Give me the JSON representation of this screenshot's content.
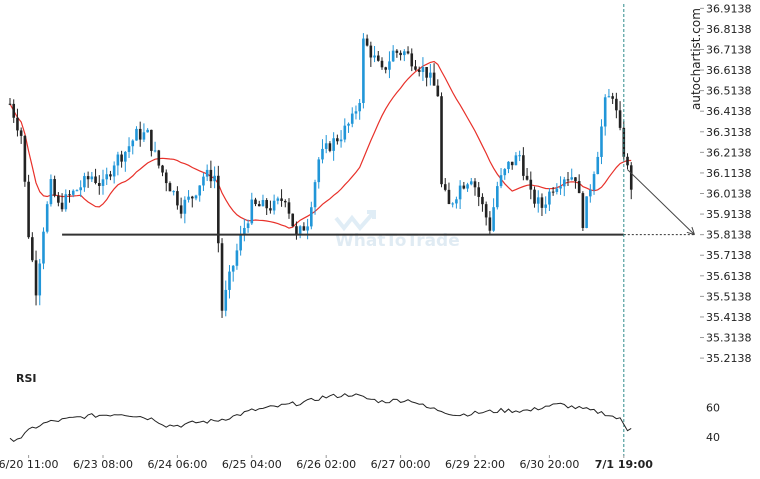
{
  "watermark": {
    "line1": "autochartist.com",
    "line2": "WhatToTrade"
  },
  "colors": {
    "bull": "#2196d8",
    "bear": "#222222",
    "ma": "#e8312a",
    "level": "#333333",
    "rsi": "#222222",
    "vline": "#2e8b8b",
    "projection": "#444444",
    "grid_text": "#222222"
  },
  "chart_data": {
    "type": "candlestick",
    "title": "",
    "price_axis": {
      "ticks": [
        "36.9138",
        "36.8138",
        "36.7138",
        "36.6138",
        "36.5138",
        "36.4138",
        "36.3138",
        "36.2138",
        "36.1138",
        "36.0138",
        "35.9138",
        "35.8138",
        "35.7138",
        "35.6138",
        "35.5138",
        "35.4138",
        "35.3138",
        "35.2138"
      ],
      "ylim": [
        35.19,
        36.93
      ]
    },
    "time_axis": {
      "labels": [
        "6/20 11:00",
        "6/23 08:00",
        "6/24 06:00",
        "6/25 04:00",
        "6/26 02:00",
        "6/27 00:00",
        "6/29 22:00",
        "6/30 20:00",
        "7/1 19:00"
      ],
      "label_bars": [
        5,
        25,
        45,
        65,
        85,
        105,
        125,
        145,
        165
      ]
    },
    "support_level": {
      "value": 35.8138,
      "start_bar": 14,
      "end_bar": 184
    },
    "forecast_projection": {
      "from": {
        "bar": 166,
        "value": 36.13
      },
      "to": {
        "bar": 184,
        "value": 35.8138
      }
    },
    "current_time_bar": 165,
    "rsi": {
      "label": "RSI",
      "ticks": [
        "60",
        "40"
      ],
      "ylim": [
        30,
        80
      ]
    },
    "anchors": [
      [
        0,
        36.45
      ],
      [
        3,
        36.3
      ],
      [
        5,
        35.82
      ],
      [
        7,
        35.55
      ],
      [
        9,
        35.85
      ],
      [
        11,
        36.05
      ],
      [
        13,
        35.95
      ],
      [
        16,
        36.0
      ],
      [
        19,
        36.05
      ],
      [
        22,
        36.1
      ],
      [
        25,
        36.05
      ],
      [
        28,
        36.17
      ],
      [
        31,
        36.22
      ],
      [
        34,
        36.3
      ],
      [
        37,
        36.3
      ],
      [
        40,
        36.15
      ],
      [
        43,
        36.05
      ],
      [
        46,
        35.95
      ],
      [
        49,
        36.0
      ],
      [
        52,
        36.1
      ],
      [
        55,
        36.1
      ],
      [
        57,
        35.45
      ],
      [
        59,
        35.6
      ],
      [
        62,
        35.8
      ],
      [
        65,
        35.95
      ],
      [
        68,
        35.95
      ],
      [
        71,
        35.95
      ],
      [
        74,
        36.0
      ],
      [
        77,
        35.8
      ],
      [
        80,
        35.88
      ],
      [
        83,
        36.18
      ],
      [
        86,
        36.25
      ],
      [
        89,
        36.3
      ],
      [
        92,
        36.37
      ],
      [
        94,
        36.48
      ],
      [
        95,
        36.75
      ],
      [
        97,
        36.7
      ],
      [
        100,
        36.6
      ],
      [
        103,
        36.7
      ],
      [
        106,
        36.7
      ],
      [
        109,
        36.65
      ],
      [
        112,
        36.6
      ],
      [
        115,
        36.5
      ],
      [
        116,
        36.05
      ],
      [
        118,
        35.95
      ],
      [
        121,
        36.05
      ],
      [
        124,
        36.1
      ],
      [
        127,
        35.95
      ],
      [
        129,
        35.85
      ],
      [
        131,
        36.05
      ],
      [
        134,
        36.15
      ],
      [
        137,
        36.2
      ],
      [
        140,
        36.0
      ],
      [
        143,
        35.95
      ],
      [
        146,
        36.05
      ],
      [
        149,
        36.1
      ],
      [
        152,
        36.1
      ],
      [
        154,
        35.88
      ],
      [
        156,
        36.05
      ],
      [
        158,
        36.22
      ],
      [
        160,
        36.45
      ],
      [
        162,
        36.5
      ],
      [
        164,
        36.3
      ],
      [
        166,
        36.13
      ],
      [
        167,
        36.05
      ]
    ],
    "rsi_anchors": [
      [
        0,
        38
      ],
      [
        3,
        40
      ],
      [
        6,
        46
      ],
      [
        10,
        50
      ],
      [
        15,
        52
      ],
      [
        20,
        54
      ],
      [
        25,
        55
      ],
      [
        30,
        56
      ],
      [
        35,
        54
      ],
      [
        39,
        52
      ],
      [
        42,
        48
      ],
      [
        46,
        48
      ],
      [
        50,
        50
      ],
      [
        55,
        51
      ],
      [
        60,
        54
      ],
      [
        65,
        58
      ],
      [
        70,
        60
      ],
      [
        75,
        62
      ],
      [
        80,
        64
      ],
      [
        84,
        67
      ],
      [
        88,
        68
      ],
      [
        92,
        69
      ],
      [
        96,
        66
      ],
      [
        100,
        64
      ],
      [
        104,
        65
      ],
      [
        108,
        65
      ],
      [
        112,
        60
      ],
      [
        116,
        58
      ],
      [
        120,
        55
      ],
      [
        124,
        56
      ],
      [
        128,
        57
      ],
      [
        132,
        58
      ],
      [
        136,
        58
      ],
      [
        140,
        58
      ],
      [
        144,
        61
      ],
      [
        148,
        62
      ],
      [
        152,
        60
      ],
      [
        156,
        58
      ],
      [
        160,
        56
      ],
      [
        164,
        52
      ],
      [
        166,
        45
      ],
      [
        167,
        47
      ]
    ]
  }
}
